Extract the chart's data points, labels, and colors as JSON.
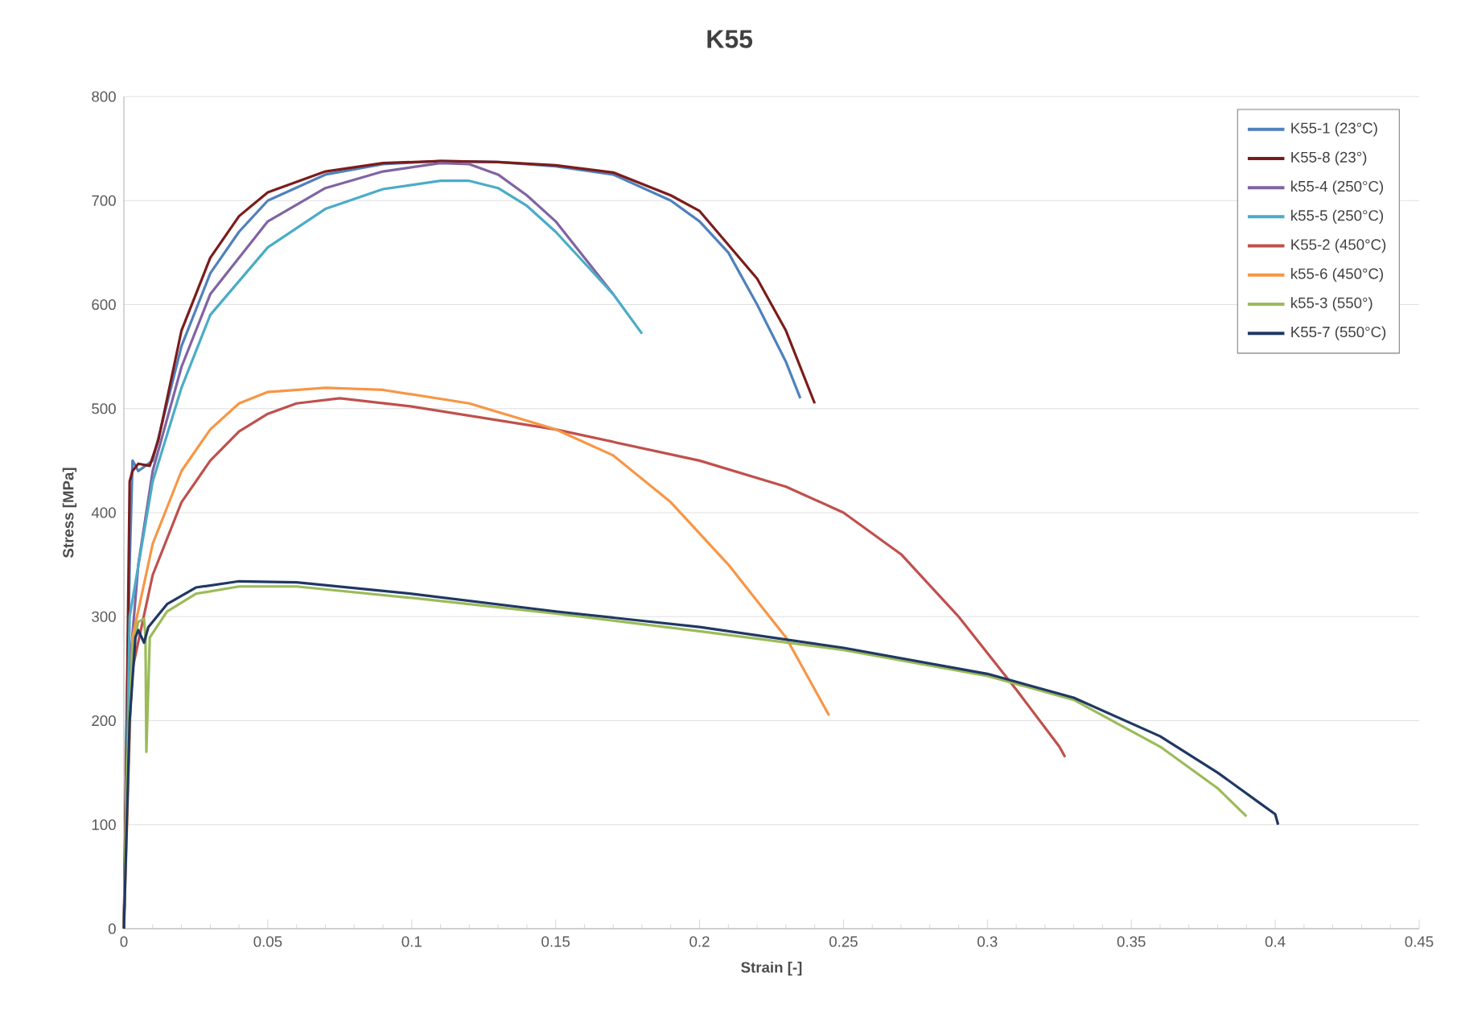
{
  "chart_data": {
    "type": "line",
    "title": "K55",
    "xlabel": "Strain [-]",
    "ylabel": "Stress [MPa]",
    "xlim": [
      0,
      0.45
    ],
    "xticks": [
      0,
      0.05,
      0.1,
      0.15,
      0.2,
      0.25,
      0.3,
      0.35,
      0.4,
      0.45
    ],
    "ylim": [
      0,
      800
    ],
    "yticks": [
      0,
      100,
      200,
      300,
      400,
      500,
      600,
      700,
      800
    ],
    "grid": "y",
    "legend": "top right",
    "marker": "none",
    "line_style": "solid",
    "series": [
      {
        "name": "K55-1 (23°C)",
        "color": "#4f81bd",
        "x": [
          0,
          0.001,
          0.002,
          0.003,
          0.005,
          0.01,
          0.02,
          0.03,
          0.04,
          0.05,
          0.07,
          0.09,
          0.11,
          0.13,
          0.15,
          0.17,
          0.19,
          0.2,
          0.21,
          0.22,
          0.23,
          0.235
        ],
        "values": [
          0,
          200,
          350,
          450,
          440,
          450,
          560,
          630,
          670,
          700,
          725,
          735,
          738,
          737,
          733,
          725,
          700,
          680,
          650,
          600,
          545,
          510
        ]
      },
      {
        "name": "K55-8 (23°)",
        "color": "#7b1c1c",
        "x": [
          0,
          0.001,
          0.002,
          0.003,
          0.005,
          0.009,
          0.012,
          0.02,
          0.03,
          0.04,
          0.05,
          0.07,
          0.09,
          0.11,
          0.13,
          0.15,
          0.17,
          0.19,
          0.2,
          0.22,
          0.23,
          0.24
        ],
        "values": [
          0,
          200,
          430,
          440,
          447,
          445,
          470,
          575,
          645,
          685,
          708,
          728,
          736,
          738,
          737,
          734,
          727,
          705,
          690,
          625,
          575,
          505
        ]
      },
      {
        "name": "k55-4 (250°C)",
        "color": "#8064a2",
        "x": [
          0,
          0.002,
          0.005,
          0.01,
          0.02,
          0.03,
          0.05,
          0.07,
          0.09,
          0.11,
          0.12,
          0.13,
          0.14,
          0.15,
          0.16,
          0.17
        ],
        "values": [
          0,
          250,
          350,
          440,
          540,
          610,
          680,
          712,
          728,
          736,
          735,
          725,
          705,
          680,
          645,
          610
        ]
      },
      {
        "name": "k55-5 (250°C)",
        "color": "#4bacc6",
        "x": [
          0,
          0.002,
          0.01,
          0.02,
          0.03,
          0.05,
          0.07,
          0.09,
          0.11,
          0.12,
          0.13,
          0.14,
          0.15,
          0.16,
          0.17,
          0.18
        ],
        "values": [
          0,
          300,
          430,
          520,
          590,
          655,
          692,
          711,
          719,
          719,
          712,
          695,
          670,
          640,
          610,
          572
        ]
      },
      {
        "name": "K55-2 (450°C)",
        "color": "#c0504d",
        "x": [
          0,
          0.001,
          0.003,
          0.01,
          0.02,
          0.03,
          0.04,
          0.05,
          0.06,
          0.075,
          0.1,
          0.15,
          0.2,
          0.23,
          0.25,
          0.27,
          0.29,
          0.31,
          0.325,
          0.327
        ],
        "values": [
          0,
          150,
          250,
          340,
          410,
          450,
          478,
          495,
          505,
          510,
          502,
          480,
          450,
          425,
          400,
          360,
          300,
          230,
          175,
          165
        ]
      },
      {
        "name": "k55-6 (450°C)",
        "color": "#f79646",
        "x": [
          0,
          0.003,
          0.01,
          0.02,
          0.03,
          0.04,
          0.05,
          0.07,
          0.09,
          0.12,
          0.15,
          0.17,
          0.19,
          0.21,
          0.23,
          0.245
        ],
        "values": [
          0,
          280,
          370,
          440,
          480,
          505,
          516,
          520,
          518,
          505,
          480,
          455,
          410,
          350,
          280,
          205
        ]
      },
      {
        "name": "k55-3 (550°)",
        "color": "#9bbb59",
        "x": [
          0,
          0.001,
          0.003,
          0.005,
          0.007,
          0.0075,
          0.0078,
          0.009,
          0.015,
          0.025,
          0.04,
          0.06,
          0.1,
          0.15,
          0.2,
          0.25,
          0.3,
          0.33,
          0.36,
          0.38,
          0.39
        ],
        "values": [
          0,
          150,
          270,
          295,
          298,
          280,
          170,
          280,
          305,
          322,
          329,
          329,
          318,
          303,
          286,
          268,
          243,
          220,
          175,
          135,
          108
        ]
      },
      {
        "name": "K55-7 (550°C)",
        "color": "#1f3864",
        "x": [
          0,
          0.002,
          0.004,
          0.005,
          0.007,
          0.0085,
          0.015,
          0.025,
          0.04,
          0.06,
          0.1,
          0.15,
          0.2,
          0.25,
          0.3,
          0.33,
          0.36,
          0.38,
          0.395,
          0.4,
          0.401
        ],
        "values": [
          0,
          200,
          280,
          287,
          275,
          290,
          312,
          328,
          334,
          333,
          322,
          305,
          290,
          270,
          245,
          222,
          185,
          150,
          120,
          110,
          100
        ]
      }
    ]
  }
}
